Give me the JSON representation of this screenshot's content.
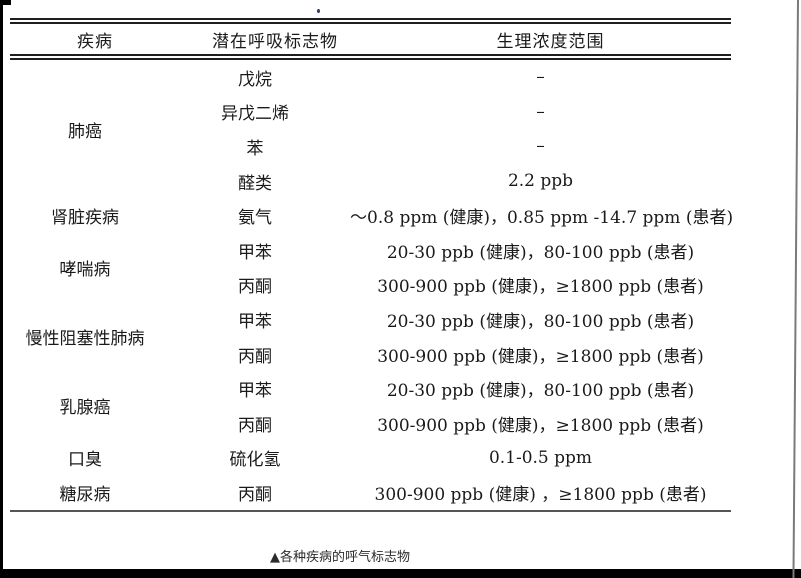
{
  "colors": {
    "rule_dark": "#1f1f1f",
    "rule_gray": "#555555",
    "frame_black": "#000000",
    "text": "#1a1a1a"
  },
  "table": {
    "columns": [
      "疾病",
      "潜在呼吸标志物",
      "生理浓度范围"
    ],
    "rows": [
      {
        "disease": "肺癌",
        "rowspan": 4,
        "marker": "戊烷",
        "range": "–"
      },
      {
        "marker": "异戊二烯",
        "range": "–"
      },
      {
        "marker": "苯",
        "range": "–"
      },
      {
        "marker": "醛类",
        "range": "2.2 ppb"
      },
      {
        "disease": "肾脏疾病",
        "rowspan": 1,
        "marker": "氨气",
        "range": "～0.8 ppm (健康)，0.85 ppm -14.7 ppm (患者)"
      },
      {
        "disease": "哮喘病",
        "rowspan": 2,
        "marker": "甲苯",
        "range": "20-30 ppb (健康)，80-100 ppb (患者)"
      },
      {
        "marker": "丙酮",
        "range": "300-900 ppb (健康)，≥1800 ppb (患者)"
      },
      {
        "disease": "慢性阻塞性肺病",
        "rowspan": 2,
        "marker": "甲苯",
        "range": "20-30 ppb (健康)，80-100 ppb (患者)"
      },
      {
        "marker": "丙酮",
        "range": "300-900 ppb (健康)，≥1800 ppb (患者)"
      },
      {
        "disease": "乳腺癌",
        "rowspan": 2,
        "marker": "甲苯",
        "range": "20-30 ppb (健康)，80-100 ppb (患者)"
      },
      {
        "marker": "丙酮",
        "range": "300-900 ppb (健康)，≥1800 ppb (患者)"
      },
      {
        "disease": "口臭",
        "rowspan": 1,
        "marker": "硫化氢",
        "range": "0.1-0.5 ppm"
      },
      {
        "disease": "糖尿病",
        "rowspan": 1,
        "marker": "丙酮",
        "range": "300-900 ppb (健康) ，≥1800 ppb (患者)"
      }
    ]
  },
  "caption": "▲各种疾病的呼气标志物"
}
